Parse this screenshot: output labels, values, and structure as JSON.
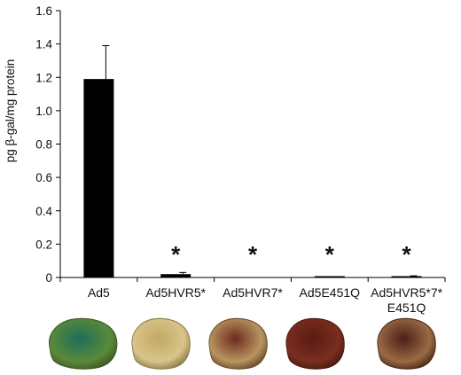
{
  "chart_data": {
    "type": "bar",
    "title": "",
    "xlabel": "",
    "ylabel": "pg β-gal/mg protein",
    "ylim": [
      0,
      1.6
    ],
    "yticks": [
      "0",
      "0.2",
      "0.4",
      "0.6",
      "0.8",
      "1.0",
      "1.2",
      "1.4",
      "1.6"
    ],
    "categories": [
      {
        "lines": [
          "Ad5"
        ]
      },
      {
        "lines": [
          "Ad5HVR5*"
        ]
      },
      {
        "lines": [
          "Ad5HVR7*"
        ]
      },
      {
        "lines": [
          "Ad5E451Q"
        ]
      },
      {
        "lines": [
          "Ad5HVR5*7*",
          "E451Q"
        ]
      }
    ],
    "values": [
      1.19,
      0.02,
      0.0,
      0.005,
      0.005
    ],
    "errors": [
      0.2,
      0.01,
      0.0,
      0.0,
      0.005
    ],
    "significance": [
      "",
      "*",
      "*",
      "*",
      "*"
    ],
    "bar_color": "#000000",
    "grid": false
  },
  "organ_images": [
    {
      "name": "ad5-liver-photo",
      "base": "#5a8a3a",
      "stain": "#1e6e58",
      "edge": "#3d5a22"
    },
    {
      "name": "ad5hvr5-liver-photo",
      "base": "#d8c48a",
      "stain": "#c2a865",
      "edge": "#8c7a48"
    },
    {
      "name": "ad5hvr7-liver-photo",
      "base": "#b89560",
      "stain": "#6e2a1e",
      "edge": "#6a4a2a"
    },
    {
      "name": "ad5e451q-liver-photo",
      "base": "#7a2e1e",
      "stain": "#5a1a12",
      "edge": "#4a1a10"
    },
    {
      "name": "ad5hvr5-7-e451q-liver-photo",
      "base": "#9a6a44",
      "stain": "#4a1e1a",
      "edge": "#4a2a18"
    }
  ]
}
